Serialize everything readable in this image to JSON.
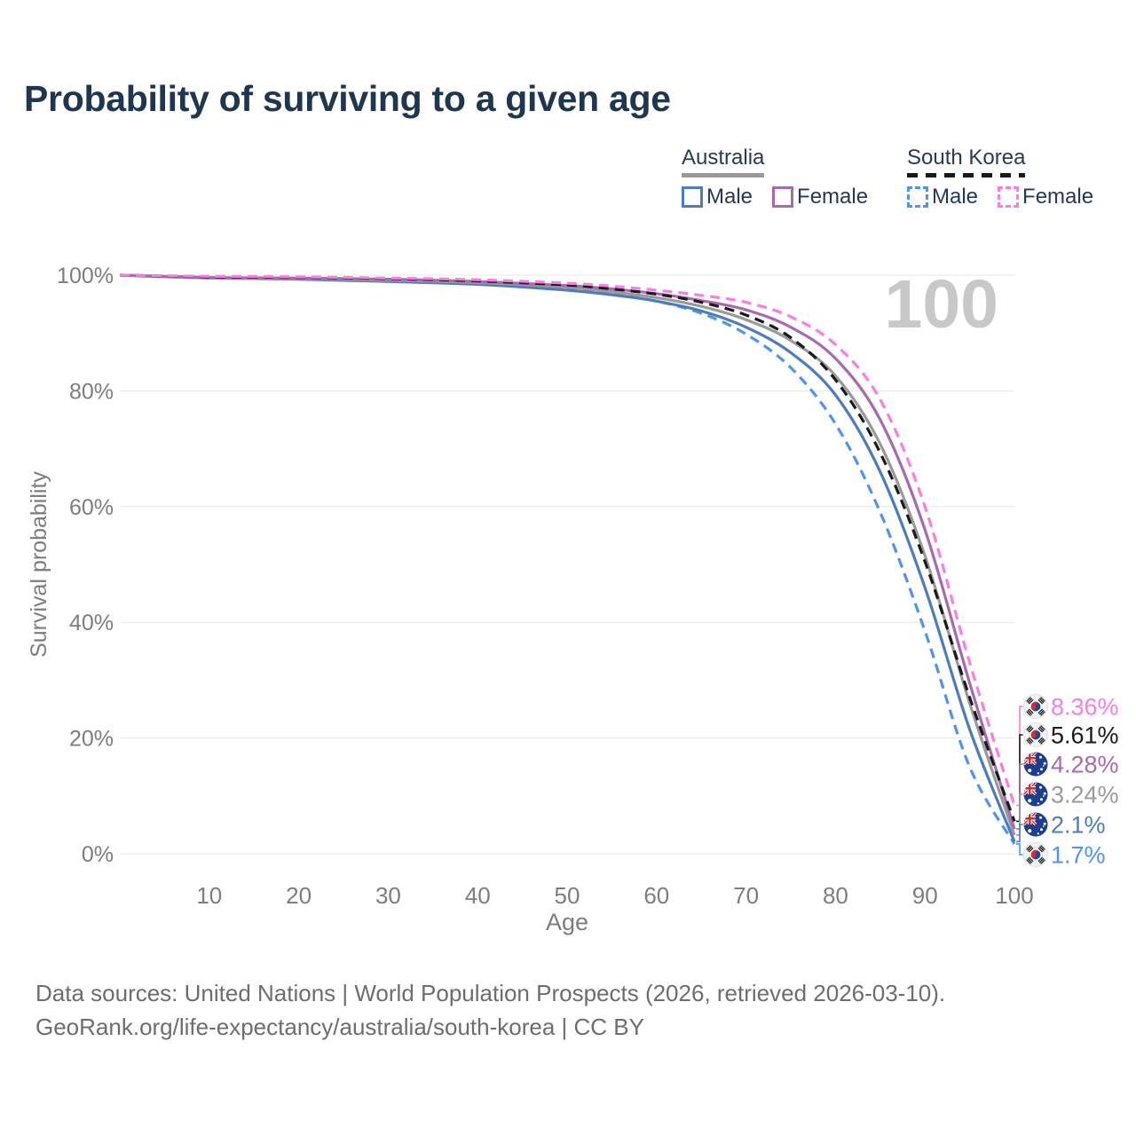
{
  "title": "Probability of surviving to a given age",
  "legend": {
    "groups": [
      {
        "name": "Australia",
        "line_style": "solid",
        "line_color": "#9a9a9a",
        "items": [
          {
            "label": "Male",
            "color": "#4b7dbe",
            "style": "solid"
          },
          {
            "label": "Female",
            "color": "#a76ab2",
            "style": "solid"
          }
        ]
      },
      {
        "name": "South Korea",
        "line_style": "dashed",
        "line_color": "#1a1a1a",
        "items": [
          {
            "label": "Male",
            "color": "#4f95ee",
            "style": "dashed"
          },
          {
            "label": "Female",
            "color": "#fa7de6",
            "style": "dashed"
          }
        ]
      }
    ]
  },
  "chart_data": {
    "type": "line",
    "title": "Probability of surviving to a given age",
    "xlabel": "Age",
    "ylabel": "Survival probability",
    "watermark": "100",
    "xlim": [
      0,
      100
    ],
    "ylim": [
      0,
      100
    ],
    "grid": "horizontal",
    "x_ticks": [
      10,
      20,
      30,
      40,
      50,
      60,
      70,
      80,
      90,
      100
    ],
    "y_ticks": [
      "0%",
      "20%",
      "40%",
      "60%",
      "80%",
      "100%"
    ],
    "x": [
      0,
      10,
      20,
      30,
      40,
      50,
      55,
      60,
      65,
      70,
      75,
      80,
      85,
      90,
      95,
      100
    ],
    "series": [
      {
        "name": "South Korea Female",
        "country": "KR",
        "color": "#fa7de6",
        "dash": true,
        "end_label": "8.36%",
        "values": [
          100,
          99.8,
          99.7,
          99.5,
          99.2,
          98.6,
          98.1,
          97.4,
          96.5,
          95.3,
          92.8,
          88.0,
          78.5,
          60.0,
          33.0,
          8.36
        ]
      },
      {
        "name": "South Korea",
        "country": "KR",
        "color": "#1a1a1a",
        "dash": true,
        "end_label": "5.61%",
        "values": [
          100,
          99.7,
          99.6,
          99.4,
          99.0,
          98.3,
          97.6,
          96.7,
          95.3,
          93.1,
          89.2,
          81.9,
          69.3,
          50.5,
          27.0,
          5.61
        ]
      },
      {
        "name": "Australia Female",
        "country": "AU",
        "color": "#a76ab2",
        "dash": false,
        "end_label": "4.28%",
        "values": [
          100,
          99.6,
          99.5,
          99.3,
          98.9,
          98.2,
          97.6,
          96.8,
          95.6,
          94.0,
          91.0,
          85.6,
          75.0,
          56.0,
          29.5,
          4.28
        ]
      },
      {
        "name": "Australia",
        "country": "AU",
        "color": "#9a9a9a",
        "dash": false,
        "end_label": "3.24%",
        "values": [
          100,
          99.5,
          99.4,
          99.1,
          98.7,
          97.9,
          97.1,
          96.1,
          94.6,
          92.3,
          88.7,
          82.6,
          70.8,
          51.5,
          26.0,
          3.24
        ]
      },
      {
        "name": "Australia Male",
        "country": "AU",
        "color": "#4b7dbe",
        "dash": false,
        "end_label": "2.1%",
        "values": [
          100,
          99.5,
          99.3,
          98.9,
          98.4,
          97.4,
          96.6,
          95.5,
          93.8,
          91.0,
          86.6,
          79.3,
          66.0,
          46.0,
          21.5,
          2.1
        ]
      },
      {
        "name": "South Korea Male",
        "country": "KR",
        "color": "#4f95ee",
        "dash": true,
        "end_label": "1.7%",
        "values": [
          100,
          99.7,
          99.5,
          99.2,
          98.6,
          97.6,
          96.7,
          95.5,
          93.4,
          89.8,
          84.0,
          74.3,
          59.0,
          38.5,
          15.0,
          1.7
        ]
      }
    ]
  },
  "footer": {
    "line1": "Data sources: United Nations | World Population Prospects (2026, retrieved 2026-03-10).",
    "line2": "GeoRank.org/life-expectancy/australia/south-korea | CC BY"
  }
}
